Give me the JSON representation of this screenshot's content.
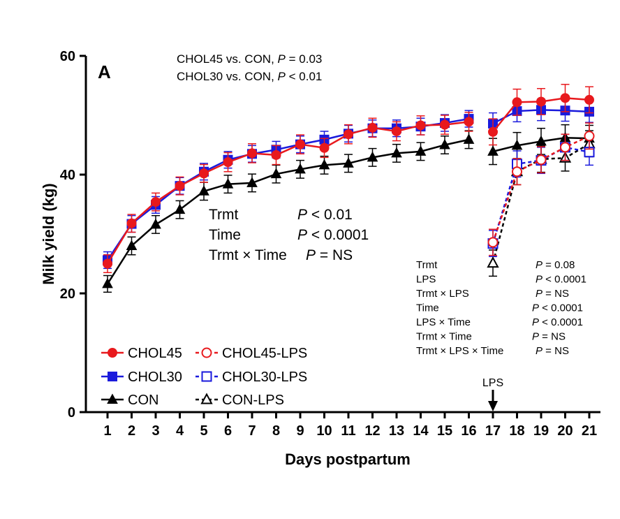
{
  "chart_data": {
    "type": "line",
    "panel_label": "A",
    "xlabel": "Days postpartum",
    "ylabel": "Milk yield (kg)",
    "x_ticks": [
      1,
      2,
      3,
      4,
      5,
      6,
      7,
      8,
      9,
      10,
      11,
      12,
      13,
      14,
      15,
      16,
      17,
      18,
      19,
      20,
      21
    ],
    "y_ticks": [
      0,
      20,
      40,
      60
    ],
    "xlim": [
      0.5,
      21.3
    ],
    "ylim": [
      0,
      60
    ],
    "top_annotations": [
      {
        "pre": "CHOL45 vs. CON, ",
        "p": "P",
        "post": " = 0.03"
      },
      {
        "pre": "CHOL30 vs. CON, ",
        "p": "P",
        "post": " < 0.01"
      }
    ],
    "mid_stats": [
      {
        "term": "Trmt",
        "p": "P",
        "value": " < 0.01"
      },
      {
        "term": "Time",
        "p": "P",
        "value": " < 0.0001"
      },
      {
        "term": "Trmt × Time",
        "p": "P",
        "value": " = NS"
      }
    ],
    "lps_stats": [
      {
        "term": "Trmt",
        "p": "P",
        "value": " = 0.08"
      },
      {
        "term": "LPS",
        "p": "P",
        "value": " < 0.0001"
      },
      {
        "term": "Trmt  × LPS",
        "p": "P",
        "value": " = NS"
      },
      {
        "term": "Time",
        "p": "P",
        "value": " < 0.0001"
      },
      {
        "term": "LPS × Time",
        "p": "P",
        "value": " < 0.0001"
      },
      {
        "term": "Trmt × Time",
        "p": "P",
        "value": " = NS"
      },
      {
        "term": "Trmt × LPS × Time",
        "p": "P",
        "value": " = NS"
      }
    ],
    "lps_marker": {
      "label": "LPS",
      "day": 17
    },
    "legend": [
      "CHOL45",
      "CHOL30",
      "CON",
      "CHOL45-LPS",
      "CHOL30-LPS",
      "CON-LPS"
    ],
    "series": [
      {
        "name": "CHOL45",
        "color": "#e8191d",
        "marker": "circle",
        "filled": true,
        "dashed": false,
        "segments": [
          {
            "x": [
              1,
              2,
              3,
              4,
              5,
              6,
              7,
              8,
              9,
              10,
              11,
              12,
              13,
              14,
              15,
              16
            ],
            "y": [
              25.0,
              31.8,
              35.4,
              38.1,
              40.2,
              42.1,
              43.6,
              43.3,
              45.1,
              44.5,
              46.8,
              47.9,
              47.3,
              48.3,
              48.4,
              48.9
            ],
            "err": [
              1.5,
              1.5,
              1.5,
              1.5,
              1.5,
              1.6,
              1.6,
              1.6,
              1.6,
              1.6,
              1.6,
              1.6,
              1.6,
              1.6,
              1.6,
              1.6
            ]
          },
          {
            "x": [
              17,
              18,
              19,
              20,
              21
            ],
            "y": [
              47.2,
              52.2,
              52.3,
              52.9,
              52.6
            ],
            "err": [
              2.2,
              2.2,
              2.2,
              2.3,
              2.2
            ]
          }
        ]
      },
      {
        "name": "CHOL30",
        "color": "#1a1adc",
        "marker": "square",
        "filled": true,
        "dashed": false,
        "segments": [
          {
            "x": [
              1,
              2,
              3,
              4,
              5,
              6,
              7,
              8,
              9,
              10,
              11,
              12,
              13,
              14,
              15,
              16
            ],
            "y": [
              25.6,
              31.7,
              34.9,
              38.1,
              40.5,
              42.5,
              43.5,
              44.2,
              45.1,
              45.9,
              46.9,
              47.8,
              47.8,
              48.1,
              48.7,
              49.4
            ],
            "err": [
              1.4,
              1.4,
              1.4,
              1.4,
              1.4,
              1.4,
              1.4,
              1.4,
              1.4,
              1.4,
              1.4,
              1.4,
              1.4,
              1.4,
              1.4,
              1.4
            ]
          },
          {
            "x": [
              17,
              18,
              19,
              20,
              21
            ],
            "y": [
              48.6,
              50.7,
              50.9,
              50.8,
              50.6
            ],
            "err": [
              1.8,
              1.8,
              1.8,
              1.8,
              1.8
            ]
          }
        ]
      },
      {
        "name": "CON",
        "color": "#000000",
        "marker": "triangle",
        "filled": true,
        "dashed": false,
        "segments": [
          {
            "x": [
              1,
              2,
              3,
              4,
              5,
              6,
              7,
              8,
              9,
              10,
              11,
              12,
              13,
              14,
              15,
              16
            ],
            "y": [
              21.6,
              28.0,
              31.6,
              34.1,
              37.2,
              38.4,
              38.6,
              40.1,
              40.9,
              41.6,
              41.9,
              42.9,
              43.6,
              43.9,
              45.0,
              45.9
            ],
            "err": [
              1.4,
              1.5,
              1.5,
              1.5,
              1.5,
              1.5,
              1.5,
              1.5,
              1.5,
              1.5,
              1.5,
              1.5,
              1.5,
              1.5,
              1.5,
              1.5
            ]
          },
          {
            "x": [
              17,
              18,
              19,
              20,
              21
            ],
            "y": [
              43.9,
              44.9,
              45.6,
              46.2,
              46.1
            ],
            "err": [
              2.2,
              2.2,
              2.2,
              2.2,
              2.2
            ]
          }
        ]
      },
      {
        "name": "CHOL45-LPS",
        "color": "#e8191d",
        "marker": "circle",
        "filled": false,
        "dashed": true,
        "segments": [
          {
            "x": [
              17,
              18,
              19,
              20,
              21
            ],
            "y": [
              28.6,
              40.5,
              42.5,
              44.6,
              46.5
            ],
            "err": [
              2.2,
              2.2,
              2.2,
              2.2,
              2.2
            ]
          }
        ]
      },
      {
        "name": "CHOL30-LPS",
        "color": "#1a1adc",
        "marker": "square",
        "filled": false,
        "dashed": true,
        "segments": [
          {
            "x": [
              17,
              18,
              19,
              20,
              21
            ],
            "y": [
              28.4,
              41.8,
              42.4,
              44.6,
              43.8
            ],
            "err": [
              2.2,
              2.2,
              2.2,
              2.2,
              2.2
            ]
          }
        ]
      },
      {
        "name": "CON-LPS",
        "color": "#000000",
        "marker": "triangle",
        "filled": false,
        "dashed": true,
        "segments": [
          {
            "x": [
              17,
              18,
              19,
              20,
              21
            ],
            "y": [
              25.1,
              40.5,
              42.6,
              42.8,
              45.2
            ],
            "err": [
              2.2,
              2.2,
              2.2,
              2.2,
              2.2
            ]
          }
        ]
      }
    ]
  }
}
